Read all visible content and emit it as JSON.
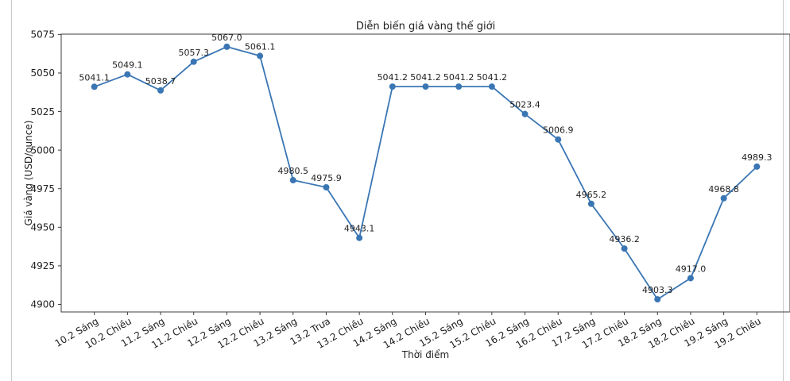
{
  "page": {
    "background_color": "#ffffff",
    "card_border_color": "#c9c9c9"
  },
  "chart_data": {
    "type": "line",
    "title": "Diễn biến giá vàng thế giới",
    "xlabel": "Thời điểm",
    "ylabel": "Giá vàng (USD/ounce)",
    "categories": [
      "10.2 Sáng",
      "10.2 Chiều",
      "11.2 Sáng",
      "11.2 Chiều",
      "12.2 Sáng",
      "12.2 Chiều",
      "13.2 Sáng",
      "13.2 Trưa",
      "13.2 Chiều",
      "14.2 Sáng",
      "14.2 Chiều",
      "15.2 Sáng",
      "15.2 Chiều",
      "16.2 Sáng",
      "16.2 Chiều",
      "17.2 Sáng",
      "17.2 Chiều",
      "18.2 Sáng",
      "18.2 Chiều",
      "19.2 Sáng",
      "19.2 Chiều"
    ],
    "values": [
      5041.1,
      5049.1,
      5038.7,
      5057.3,
      5067.0,
      5061.1,
      4980.5,
      4975.9,
      4943.1,
      5041.2,
      5041.2,
      5041.2,
      5041.2,
      5023.4,
      5006.9,
      4965.2,
      4936.2,
      4903.3,
      4917.0,
      4968.8,
      4989.3
    ],
    "point_label_decimals": 1,
    "yticks": [
      4900,
      4925,
      4950,
      4975,
      5000,
      5025,
      5050,
      5075
    ],
    "ylim": [
      4895.1,
      5075.2
    ],
    "xlim": [
      -1,
      21
    ],
    "xtick_rotation_deg": 30,
    "grid": false,
    "legend_position": "none",
    "line_color": "#3a76b4",
    "marker_color": "#3a76b4",
    "spine_color": "#3c3c3c",
    "tick_color": "#3c3c3c",
    "text_color": "#1f1f1f"
  }
}
